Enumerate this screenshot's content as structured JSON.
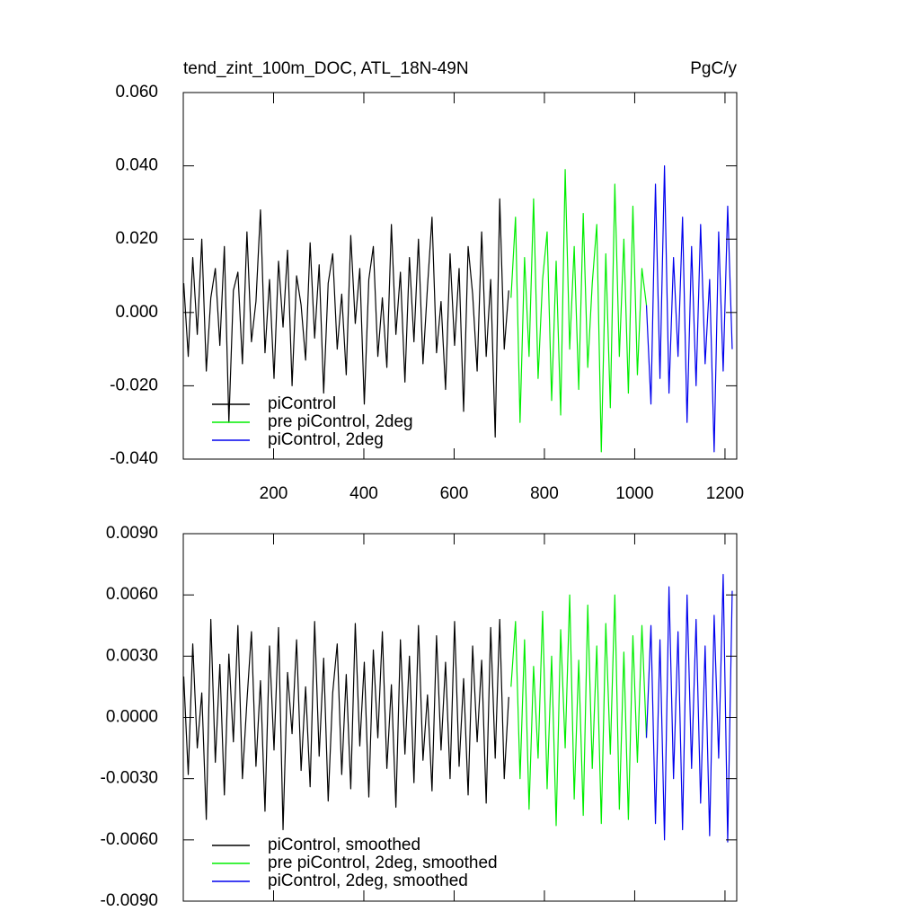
{
  "chart_data": [
    {
      "type": "line",
      "title": "tend_zint_100m_DOC, ATL_18N-49N",
      "title_right": "PgC/y",
      "xlim": [
        0,
        1226
      ],
      "xticks": [
        200,
        400,
        600,
        800,
        1000,
        1200
      ],
      "ylim": [
        -0.04,
        0.06
      ],
      "yticks": [
        {
          "value": -0.04,
          "label": "-0.040"
        },
        {
          "value": -0.02,
          "label": "-0.020"
        },
        {
          "value": 0,
          "label": "0.000"
        },
        {
          "value": 0.02,
          "label": "0.020"
        },
        {
          "value": 0.04,
          "label": "0.040"
        },
        {
          "value": 0.06,
          "label": "0.060"
        }
      ],
      "legend": "lower left",
      "series": [
        {
          "name": "piControl",
          "color": "#000000",
          "x": [
            1,
            11,
            21,
            31,
            41,
            51,
            61,
            71,
            81,
            91,
            101,
            111,
            121,
            131,
            141,
            151,
            161,
            171,
            181,
            191,
            201,
            211,
            221,
            231,
            241,
            251,
            261,
            271,
            281,
            291,
            301,
            311,
            321,
            331,
            341,
            351,
            361,
            371,
            381,
            391,
            401,
            411,
            421,
            431,
            441,
            451,
            461,
            471,
            481,
            491,
            501,
            511,
            521,
            531,
            541,
            551,
            561,
            571,
            581,
            591,
            601,
            611,
            621,
            631,
            641,
            651,
            661,
            671,
            681,
            691,
            701,
            711,
            721
          ],
          "values": [
            0.008,
            -0.012,
            0.015,
            -0.006,
            0.02,
            -0.016,
            0.004,
            0.012,
            -0.009,
            0.018,
            -0.03,
            0.006,
            0.011,
            -0.014,
            0.022,
            -0.008,
            0.003,
            0.028,
            -0.011,
            0.009,
            -0.018,
            0.014,
            -0.004,
            0.017,
            -0.02,
            0.01,
            0.002,
            -0.013,
            0.019,
            -0.007,
            0.013,
            -0.022,
            0.008,
            0.016,
            -0.01,
            0.005,
            -0.017,
            0.021,
            -0.003,
            0.012,
            -0.025,
            0.009,
            0.018,
            -0.012,
            0.004,
            -0.015,
            0.024,
            -0.006,
            0.011,
            -0.019,
            0.015,
            -0.008,
            0.02,
            -0.014,
            0.007,
            0.026,
            -0.011,
            0.003,
            -0.021,
            0.016,
            -0.009,
            0.012,
            -0.027,
            0.018,
            0.005,
            -0.016,
            0.022,
            -0.012,
            0.009,
            -0.034,
            0.031,
            -0.01,
            0.006
          ]
        },
        {
          "name": "pre piControl, 2deg",
          "color": "#00ee00",
          "x": [
            726,
            736,
            746,
            756,
            766,
            776,
            786,
            796,
            806,
            816,
            826,
            836,
            846,
            856,
            866,
            876,
            886,
            896,
            906,
            916,
            926,
            936,
            946,
            956,
            966,
            976,
            986,
            996,
            1006,
            1016,
            1026
          ],
          "values": [
            0.004,
            0.026,
            -0.03,
            0.015,
            -0.012,
            0.031,
            -0.018,
            0.009,
            0.022,
            -0.024,
            0.014,
            -0.028,
            0.039,
            -0.01,
            0.018,
            -0.021,
            0.027,
            -0.015,
            0.008,
            0.024,
            -0.038,
            0.016,
            -0.026,
            0.035,
            -0.012,
            0.02,
            -0.022,
            0.029,
            -0.017,
            0.012,
            0.002
          ]
        },
        {
          "name": "piControl, 2deg",
          "color": "#0000ee",
          "x": [
            1026,
            1036,
            1046,
            1056,
            1066,
            1076,
            1086,
            1096,
            1106,
            1116,
            1126,
            1136,
            1146,
            1156,
            1166,
            1176,
            1186,
            1196,
            1206,
            1216
          ],
          "values": [
            0.002,
            -0.025,
            0.035,
            -0.018,
            0.04,
            -0.022,
            0.015,
            -0.012,
            0.026,
            -0.03,
            0.018,
            -0.02,
            0.024,
            -0.014,
            0.009,
            -0.038,
            0.022,
            -0.016,
            0.029,
            -0.01
          ]
        }
      ]
    },
    {
      "type": "line",
      "xlim": [
        0,
        1226
      ],
      "xticks": [
        200,
        400,
        600,
        800,
        1000,
        1200
      ],
      "ylim": [
        -0.009,
        0.009
      ],
      "yticks": [
        {
          "value": -0.009,
          "label": "-0.0090"
        },
        {
          "value": -0.006,
          "label": "-0.0060"
        },
        {
          "value": -0.003,
          "label": "-0.0030"
        },
        {
          "value": 0,
          "label": "0.0000"
        },
        {
          "value": 0.003,
          "label": "0.0030"
        },
        {
          "value": 0.006,
          "label": "0.0060"
        },
        {
          "value": 0.009,
          "label": "0.0090"
        }
      ],
      "legend": "lower left",
      "series": [
        {
          "name": "piControl, smoothed",
          "color": "#000000",
          "x": [
            1,
            11,
            21,
            31,
            41,
            51,
            61,
            71,
            81,
            91,
            101,
            111,
            121,
            131,
            141,
            151,
            161,
            171,
            181,
            191,
            201,
            211,
            221,
            231,
            241,
            251,
            261,
            271,
            281,
            291,
            301,
            311,
            321,
            331,
            341,
            351,
            361,
            371,
            381,
            391,
            401,
            411,
            421,
            431,
            441,
            451,
            461,
            471,
            481,
            491,
            501,
            511,
            521,
            531,
            541,
            551,
            561,
            571,
            581,
            591,
            601,
            611,
            621,
            631,
            641,
            651,
            661,
            671,
            681,
            691,
            701,
            711,
            721
          ],
          "values": [
            0.002,
            -0.0028,
            0.0036,
            -0.0015,
            0.0012,
            -0.005,
            0.0048,
            -0.0022,
            0.0026,
            -0.0038,
            0.0031,
            -0.0012,
            0.0045,
            -0.003,
            0.0008,
            0.0042,
            -0.0024,
            0.0018,
            -0.0046,
            0.0035,
            -0.0016,
            0.0044,
            -0.0055,
            0.0022,
            -0.0008,
            0.0038,
            -0.0026,
            0.0015,
            -0.0034,
            0.0047,
            -0.0019,
            0.0029,
            -0.0041,
            0.0012,
            0.0036,
            -0.0028,
            0.0021,
            -0.0035,
            0.0046,
            -0.0014,
            0.0027,
            -0.0039,
            0.0033,
            -0.001,
            0.0042,
            -0.0025,
            0.0016,
            -0.0044,
            0.0038,
            -0.0018,
            0.003,
            -0.0032,
            0.0045,
            -0.0021,
            0.0011,
            -0.0036,
            0.004,
            -0.0016,
            0.0027,
            -0.003,
            0.0047,
            -0.0024,
            0.0019,
            -0.0038,
            0.0035,
            -0.0012,
            0.0028,
            -0.0042,
            0.0044,
            -0.002,
            0.0048,
            -0.003,
            0.001
          ]
        },
        {
          "name": "pre piControl, 2deg, smoothed",
          "color": "#00ee00",
          "x": [
            726,
            736,
            746,
            756,
            766,
            776,
            786,
            796,
            806,
            816,
            826,
            836,
            846,
            856,
            866,
            876,
            886,
            896,
            906,
            916,
            926,
            936,
            946,
            956,
            966,
            976,
            986,
            996,
            1006,
            1016,
            1026
          ],
          "values": [
            0.0015,
            0.0047,
            -0.003,
            0.0038,
            -0.0045,
            0.0025,
            -0.002,
            0.0052,
            -0.0035,
            0.003,
            -0.0053,
            0.0043,
            -0.0015,
            0.006,
            -0.004,
            0.0028,
            -0.0048,
            0.0055,
            -0.0025,
            0.0035,
            -0.0052,
            0.0046,
            -0.0018,
            0.006,
            -0.0045,
            0.0032,
            -0.005,
            0.004,
            -0.0022,
            0.0045,
            -0.001
          ]
        },
        {
          "name": "piControl, 2deg, smoothed",
          "color": "#0000ee",
          "x": [
            1026,
            1036,
            1046,
            1056,
            1066,
            1076,
            1086,
            1096,
            1106,
            1116,
            1126,
            1136,
            1146,
            1156,
            1166,
            1176,
            1186,
            1196,
            1206,
            1216
          ],
          "values": [
            -0.001,
            0.0045,
            -0.0052,
            0.0038,
            -0.006,
            0.0064,
            -0.003,
            0.0042,
            -0.0055,
            0.006,
            -0.0025,
            0.0048,
            -0.0042,
            0.0035,
            -0.0058,
            0.005,
            -0.002,
            0.007,
            -0.0061,
            0.0062
          ]
        }
      ]
    }
  ]
}
